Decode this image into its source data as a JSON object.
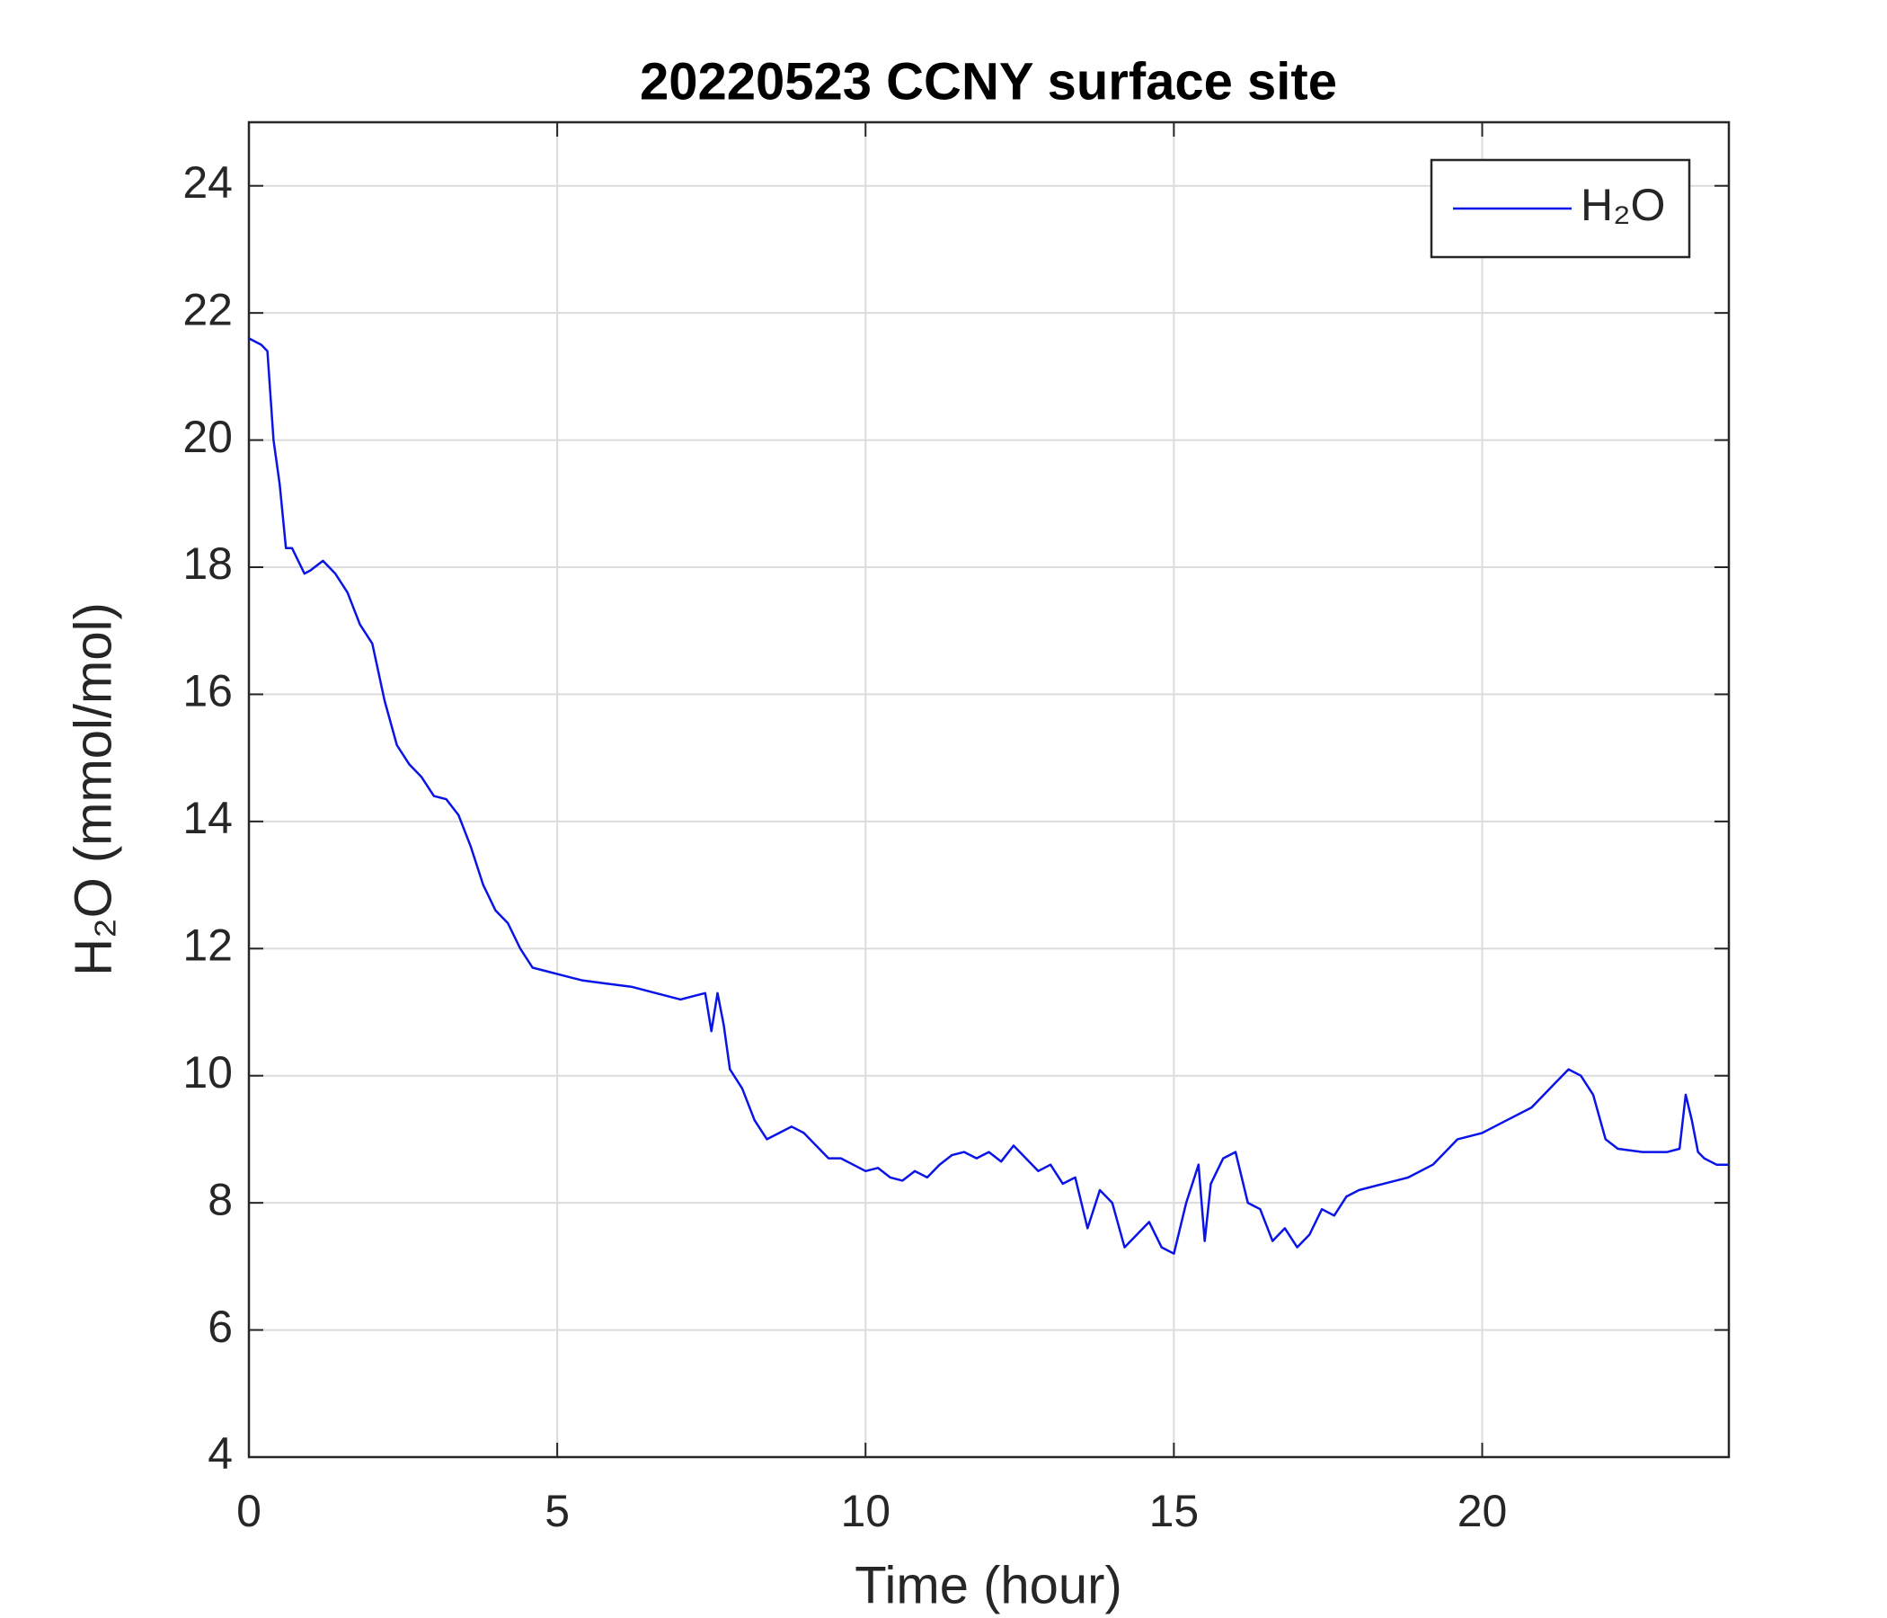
{
  "chart_data": {
    "type": "line",
    "title": "20220523 CCNY surface site",
    "xlabel": "Time (hour)",
    "ylabel": "H₂O (mmol/mol)",
    "x": [
      0,
      0.1,
      0.2,
      0.3,
      0.4,
      0.5,
      0.6,
      0.7,
      0.8,
      0.9,
      1.0,
      1.2,
      1.4,
      1.6,
      1.8,
      2.0,
      2.2,
      2.4,
      2.6,
      2.8,
      3.0,
      3.2,
      3.4,
      3.6,
      3.8,
      4.0,
      4.2,
      4.4,
      4.6,
      4.8,
      5.0,
      5.4,
      5.8,
      6.2,
      6.6,
      7.0,
      7.2,
      7.4,
      7.5,
      7.6,
      7.7,
      7.8,
      8.0,
      8.2,
      8.4,
      8.6,
      8.8,
      9.0,
      9.2,
      9.4,
      9.6,
      9.8,
      10.0,
      10.2,
      10.4,
      10.6,
      10.8,
      11.0,
      11.2,
      11.4,
      11.6,
      11.8,
      12.0,
      12.2,
      12.4,
      12.6,
      12.8,
      13.0,
      13.2,
      13.4,
      13.6,
      13.8,
      14.0,
      14.2,
      14.4,
      14.6,
      14.8,
      15.0,
      15.2,
      15.4,
      15.5,
      15.6,
      15.8,
      16.0,
      16.2,
      16.4,
      16.6,
      16.8,
      17.0,
      17.2,
      17.4,
      17.6,
      17.8,
      18.0,
      18.4,
      18.8,
      19.2,
      19.6,
      20.0,
      20.4,
      20.8,
      21.2,
      21.4,
      21.6,
      21.8,
      22.0,
      22.2,
      22.6,
      23.0,
      23.2,
      23.3,
      23.4,
      23.5,
      23.6,
      23.8,
      24.0
    ],
    "series": [
      {
        "name": "H₂O",
        "color": "#0a14e6",
        "values": [
          21.6,
          21.55,
          21.5,
          21.4,
          20.0,
          19.3,
          18.3,
          18.3,
          18.1,
          17.9,
          17.95,
          18.1,
          17.9,
          17.6,
          17.1,
          16.8,
          15.9,
          15.2,
          14.9,
          14.7,
          14.4,
          14.35,
          14.1,
          13.6,
          13.0,
          12.6,
          12.4,
          12.0,
          11.7,
          11.65,
          11.6,
          11.5,
          11.45,
          11.4,
          11.3,
          11.2,
          11.25,
          11.3,
          10.7,
          11.3,
          10.8,
          10.1,
          9.8,
          9.3,
          9.0,
          9.1,
          9.2,
          9.1,
          8.9,
          8.7,
          8.7,
          8.6,
          8.5,
          8.55,
          8.4,
          8.35,
          8.5,
          8.4,
          8.6,
          8.75,
          8.8,
          8.7,
          8.8,
          8.65,
          8.9,
          8.7,
          8.5,
          8.6,
          8.3,
          8.4,
          7.6,
          8.2,
          8.0,
          7.3,
          7.5,
          7.7,
          7.3,
          7.2,
          8.0,
          8.6,
          7.4,
          8.3,
          8.7,
          8.8,
          8.0,
          7.9,
          7.4,
          7.6,
          7.3,
          7.5,
          7.9,
          7.8,
          8.1,
          8.2,
          8.3,
          8.4,
          8.6,
          9.0,
          9.1,
          9.3,
          9.5,
          9.9,
          10.1,
          10.0,
          9.7,
          9.0,
          8.85,
          8.8,
          8.8,
          8.85,
          9.7,
          9.3,
          8.8,
          8.7,
          8.6,
          8.6
        ]
      }
    ],
    "xlim": [
      0,
      24
    ],
    "xticks": [
      0,
      5,
      10,
      15,
      20
    ],
    "ylim": [
      4,
      25
    ],
    "yticks": [
      4,
      6,
      8,
      10,
      12,
      14,
      16,
      18,
      20,
      22,
      24
    ],
    "grid": true,
    "legend": "upper right"
  }
}
